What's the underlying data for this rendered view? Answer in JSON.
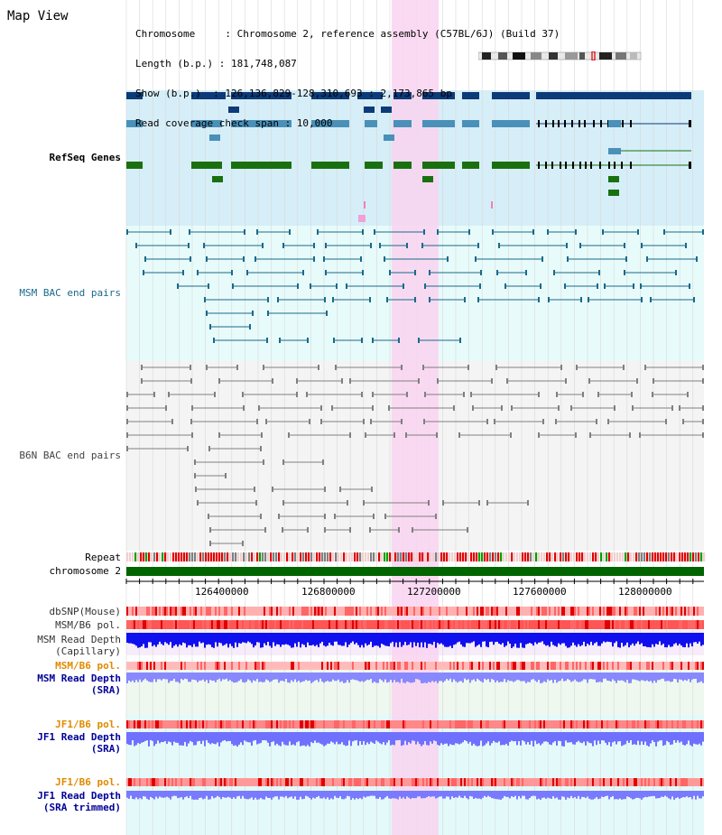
{
  "page": {
    "title": "Map View"
  },
  "info": [
    "Chromosome     : Chromosome 2, reference assembly (C57BL/6J) (Build 37)",
    "Length (b.p.) : 181,748,087",
    "Show (b.p.)  : 126,136,829-128,310,693 : 2,173,865 bp",
    "Read coverage check span : 10,000"
  ],
  "tracks": {
    "refseq": "RefSeq Genes",
    "msm_bac": "MSM BAC end pairs",
    "b6n_bac": "B6N BAC end pairs",
    "repeat": "Repeat",
    "chromosome": "chromosome 2",
    "dbsnp": "dbSNP(Mouse)",
    "msm_pol1": "MSM/B6 pol.",
    "msm_depth_cap_1": "MSM Read Depth",
    "msm_depth_cap_2": "(Capillary)",
    "msm_pol2": "MSM/B6 pol.",
    "msm_depth_sra_1": "MSM Read Depth",
    "msm_depth_sra_2": "(SRA)",
    "jf1_pol1": "JF1/B6 pol.",
    "jf1_depth_1": "JF1 Read Depth",
    "jf1_depth_2": "(SRA)",
    "jf1_pol2": "JF1/B6 pol.",
    "jf1_trim_1": "JF1 Read Depth",
    "jf1_trim_2": "(SRA trimmed)"
  },
  "axis_ticks": [
    "126400000",
    "126800000",
    "127200000",
    "127600000",
    "128000000"
  ],
  "colors": {
    "refseq_bg": "#d6eef8",
    "msm_bg": "#e8fbfb",
    "b6n_bg": "#f4f4f4",
    "highlight": "#f9d4f0",
    "gene_dark": "#0d3a78",
    "gene_mid": "#4a90b8",
    "gene_green": "#1a7010",
    "msm_pair": "#1a6a8a",
    "b6n_pair": "#808080",
    "chromosome_bar": "#006400",
    "depth_blue": "#3333ff",
    "label_navy": "#000099",
    "label_orange": "#e08a00"
  }
}
